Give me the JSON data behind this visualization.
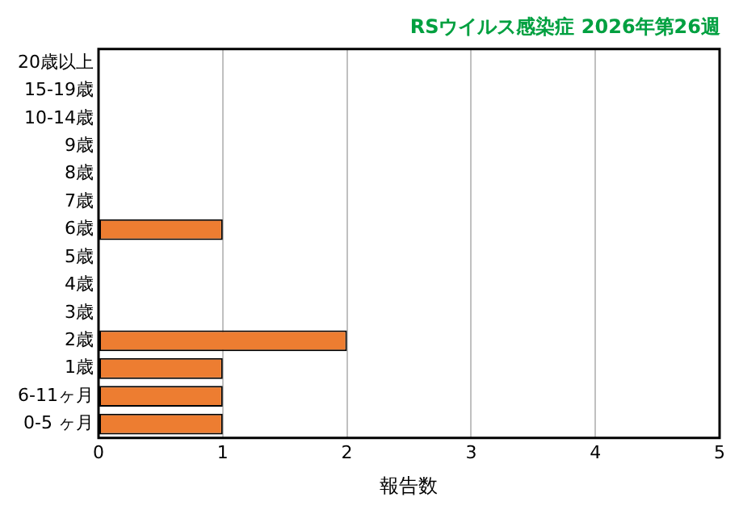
{
  "chart_data": {
    "type": "bar",
    "orientation": "horizontal",
    "title": "RSウイルス感染症 2026年第26週",
    "xlabel": "報告数",
    "categories": [
      "20歳以上",
      "15-19歳",
      "10-14歳",
      "9歳",
      "8歳",
      "7歳",
      "6歳",
      "5歳",
      "4歳",
      "3歳",
      "2歳",
      "1歳",
      "6-11ヶ月",
      "0-5 ヶ月"
    ],
    "values": [
      0,
      0,
      0,
      0,
      0,
      0,
      1,
      0,
      0,
      0,
      2,
      1,
      1,
      1
    ],
    "color": "#ed7d31",
    "xlim": [
      0,
      5
    ],
    "xticks": [
      0,
      1,
      2,
      3,
      4,
      5
    ],
    "grid": "x",
    "legend": false
  }
}
